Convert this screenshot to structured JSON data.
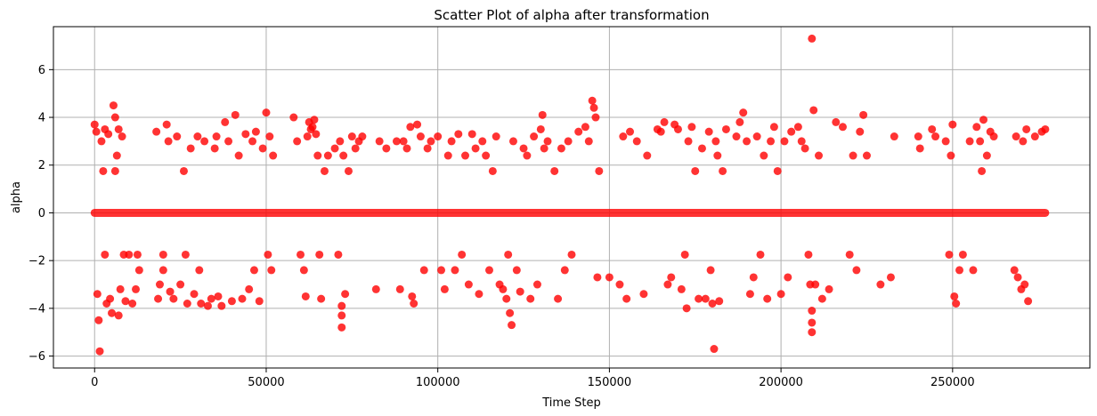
{
  "chart_data": {
    "type": "scatter",
    "title": "Scatter Plot of alpha after transformation",
    "xlabel": "Time Step",
    "ylabel": "alpha",
    "xlim": [
      -12000,
      290000
    ],
    "ylim": [
      -6.5,
      7.8
    ],
    "x_ticks": [
      0,
      50000,
      100000,
      150000,
      200000,
      250000
    ],
    "x_tick_labels": [
      "0",
      "50000",
      "100000",
      "150000",
      "200000",
      "250000"
    ],
    "y_ticks": [
      -6,
      -4,
      -2,
      0,
      2,
      4,
      6
    ],
    "y_tick_labels": [
      "−6",
      "−4",
      "−2",
      "0",
      "2",
      "4",
      "6"
    ],
    "grid": true,
    "legend": "none",
    "marker_color": "#ff0000",
    "marker_alpha": 0.8,
    "zero_band": {
      "x_start": 0,
      "x_end": 277000,
      "y": 0
    },
    "points": [
      {
        "x": 0,
        "y": 3.7
      },
      {
        "x": 500,
        "y": 3.4
      },
      {
        "x": 800,
        "y": -3.4
      },
      {
        "x": 1200,
        "y": -4.5
      },
      {
        "x": 1500,
        "y": -5.8
      },
      {
        "x": 2000,
        "y": 3.0
      },
      {
        "x": 2500,
        "y": 1.75
      },
      {
        "x": 3000,
        "y": -1.75
      },
      {
        "x": 3000,
        "y": 3.5
      },
      {
        "x": 3500,
        "y": -3.8
      },
      {
        "x": 4000,
        "y": 3.3
      },
      {
        "x": 4500,
        "y": -3.6
      },
      {
        "x": 5000,
        "y": -4.2
      },
      {
        "x": 5500,
        "y": 4.5
      },
      {
        "x": 6000,
        "y": 4.0
      },
      {
        "x": 6000,
        "y": 1.75
      },
      {
        "x": 6500,
        "y": 2.4
      },
      {
        "x": 7000,
        "y": -4.3
      },
      {
        "x": 7000,
        "y": 3.5
      },
      {
        "x": 7500,
        "y": -3.2
      },
      {
        "x": 8000,
        "y": 3.2
      },
      {
        "x": 8500,
        "y": -1.75
      },
      {
        "x": 9000,
        "y": -3.7
      },
      {
        "x": 10000,
        "y": -1.75
      },
      {
        "x": 11000,
        "y": -3.8
      },
      {
        "x": 12000,
        "y": -3.2
      },
      {
        "x": 12500,
        "y": -1.75
      },
      {
        "x": 13000,
        "y": -2.4
      },
      {
        "x": 18000,
        "y": 3.4
      },
      {
        "x": 18500,
        "y": -3.6
      },
      {
        "x": 19000,
        "y": -3.0
      },
      {
        "x": 20000,
        "y": -2.4
      },
      {
        "x": 20000,
        "y": -1.75
      },
      {
        "x": 21000,
        "y": 3.7
      },
      {
        "x": 21500,
        "y": 3.0
      },
      {
        "x": 22000,
        "y": -3.3
      },
      {
        "x": 23000,
        "y": -3.6
      },
      {
        "x": 24000,
        "y": 3.2
      },
      {
        "x": 25000,
        "y": -3.0
      },
      {
        "x": 26000,
        "y": 1.75
      },
      {
        "x": 26500,
        "y": -1.75
      },
      {
        "x": 27000,
        "y": -3.8
      },
      {
        "x": 28000,
        "y": 2.7
      },
      {
        "x": 29000,
        "y": -3.4
      },
      {
        "x": 30000,
        "y": 3.2
      },
      {
        "x": 30500,
        "y": -2.4
      },
      {
        "x": 31000,
        "y": -3.8
      },
      {
        "x": 32000,
        "y": 3.0
      },
      {
        "x": 33000,
        "y": -3.9
      },
      {
        "x": 34000,
        "y": -3.6
      },
      {
        "x": 35000,
        "y": 2.7
      },
      {
        "x": 35500,
        "y": 3.2
      },
      {
        "x": 36000,
        "y": -3.5
      },
      {
        "x": 37000,
        "y": -3.9
      },
      {
        "x": 38000,
        "y": 3.8
      },
      {
        "x": 39000,
        "y": 3.0
      },
      {
        "x": 40000,
        "y": -3.7
      },
      {
        "x": 41000,
        "y": 4.1
      },
      {
        "x": 42000,
        "y": 2.4
      },
      {
        "x": 43000,
        "y": -3.6
      },
      {
        "x": 44000,
        "y": 3.3
      },
      {
        "x": 45000,
        "y": -3.2
      },
      {
        "x": 46000,
        "y": 3.0
      },
      {
        "x": 46500,
        "y": -2.4
      },
      {
        "x": 47000,
        "y": 3.4
      },
      {
        "x": 48000,
        "y": -3.7
      },
      {
        "x": 49000,
        "y": 2.7
      },
      {
        "x": 50000,
        "y": 4.2
      },
      {
        "x": 50500,
        "y": -1.75
      },
      {
        "x": 51000,
        "y": 3.2
      },
      {
        "x": 51500,
        "y": -2.4
      },
      {
        "x": 52000,
        "y": 2.4
      },
      {
        "x": 58000,
        "y": 4.0
      },
      {
        "x": 59000,
        "y": 3.0
      },
      {
        "x": 60000,
        "y": -1.75
      },
      {
        "x": 61000,
        "y": -2.4
      },
      {
        "x": 61500,
        "y": -3.5
      },
      {
        "x": 62000,
        "y": 3.2
      },
      {
        "x": 62500,
        "y": 3.8
      },
      {
        "x": 63000,
        "y": 3.5
      },
      {
        "x": 63500,
        "y": 3.6
      },
      {
        "x": 64000,
        "y": 3.9
      },
      {
        "x": 64500,
        "y": 3.3
      },
      {
        "x": 65000,
        "y": 2.4
      },
      {
        "x": 65500,
        "y": -1.75
      },
      {
        "x": 66000,
        "y": -3.6
      },
      {
        "x": 67000,
        "y": 1.75
      },
      {
        "x": 68000,
        "y": 2.4
      },
      {
        "x": 70000,
        "y": 2.7
      },
      {
        "x": 71000,
        "y": -1.75
      },
      {
        "x": 71500,
        "y": 3.0
      },
      {
        "x": 72000,
        "y": -3.9
      },
      {
        "x": 72000,
        "y": -4.3
      },
      {
        "x": 72000,
        "y": -4.8
      },
      {
        "x": 72500,
        "y": 2.4
      },
      {
        "x": 73000,
        "y": -3.4
      },
      {
        "x": 74000,
        "y": 1.75
      },
      {
        "x": 75000,
        "y": 3.2
      },
      {
        "x": 76000,
        "y": 2.7
      },
      {
        "x": 77000,
        "y": 3.0
      },
      {
        "x": 78000,
        "y": 3.2
      },
      {
        "x": 82000,
        "y": -3.2
      },
      {
        "x": 83000,
        "y": 3.0
      },
      {
        "x": 85000,
        "y": 2.7
      },
      {
        "x": 88000,
        "y": 3.0
      },
      {
        "x": 89000,
        "y": -3.2
      },
      {
        "x": 90000,
        "y": 3.0
      },
      {
        "x": 91000,
        "y": 2.7
      },
      {
        "x": 92000,
        "y": 3.6
      },
      {
        "x": 92500,
        "y": -3.5
      },
      {
        "x": 93000,
        "y": -3.8
      },
      {
        "x": 94000,
        "y": 3.7
      },
      {
        "x": 95000,
        "y": 3.2
      },
      {
        "x": 96000,
        "y": -2.4
      },
      {
        "x": 97000,
        "y": 2.7
      },
      {
        "x": 98000,
        "y": 3.0
      },
      {
        "x": 100000,
        "y": 3.2
      },
      {
        "x": 101000,
        "y": -2.4
      },
      {
        "x": 102000,
        "y": -3.2
      },
      {
        "x": 103000,
        "y": 2.4
      },
      {
        "x": 104000,
        "y": 3.0
      },
      {
        "x": 105000,
        "y": -2.4
      },
      {
        "x": 106000,
        "y": 3.3
      },
      {
        "x": 107000,
        "y": -1.75
      },
      {
        "x": 108000,
        "y": 2.4
      },
      {
        "x": 109000,
        "y": -3.0
      },
      {
        "x": 110000,
        "y": 3.3
      },
      {
        "x": 111000,
        "y": 2.7
      },
      {
        "x": 112000,
        "y": -3.4
      },
      {
        "x": 113000,
        "y": 3.0
      },
      {
        "x": 114000,
        "y": 2.4
      },
      {
        "x": 115000,
        "y": -2.4
      },
      {
        "x": 116000,
        "y": 1.75
      },
      {
        "x": 117000,
        "y": 3.2
      },
      {
        "x": 118000,
        "y": -3.0
      },
      {
        "x": 119000,
        "y": -3.2
      },
      {
        "x": 120000,
        "y": -3.6
      },
      {
        "x": 120500,
        "y": -1.75
      },
      {
        "x": 121000,
        "y": -4.2
      },
      {
        "x": 121500,
        "y": -4.7
      },
      {
        "x": 122000,
        "y": 3.0
      },
      {
        "x": 123000,
        "y": -2.4
      },
      {
        "x": 124000,
        "y": -3.3
      },
      {
        "x": 125000,
        "y": 2.7
      },
      {
        "x": 126000,
        "y": 2.4
      },
      {
        "x": 127000,
        "y": -3.6
      },
      {
        "x": 128000,
        "y": 3.2
      },
      {
        "x": 129000,
        "y": -3.0
      },
      {
        "x": 130000,
        "y": 3.5
      },
      {
        "x": 130500,
        "y": 4.1
      },
      {
        "x": 131000,
        "y": 2.7
      },
      {
        "x": 132000,
        "y": 3.0
      },
      {
        "x": 134000,
        "y": 1.75
      },
      {
        "x": 135000,
        "y": -3.6
      },
      {
        "x": 136000,
        "y": 2.7
      },
      {
        "x": 137000,
        "y": -2.4
      },
      {
        "x": 138000,
        "y": 3.0
      },
      {
        "x": 139000,
        "y": -1.75
      },
      {
        "x": 141000,
        "y": 3.4
      },
      {
        "x": 143000,
        "y": 3.6
      },
      {
        "x": 144000,
        "y": 3.0
      },
      {
        "x": 145000,
        "y": 4.7
      },
      {
        "x": 145500,
        "y": 4.4
      },
      {
        "x": 146000,
        "y": 4.0
      },
      {
        "x": 146500,
        "y": -2.7
      },
      {
        "x": 147000,
        "y": 1.75
      },
      {
        "x": 150000,
        "y": -2.7
      },
      {
        "x": 153000,
        "y": -3.0
      },
      {
        "x": 154000,
        "y": 3.2
      },
      {
        "x": 155000,
        "y": -3.6
      },
      {
        "x": 156000,
        "y": 3.4
      },
      {
        "x": 158000,
        "y": 3.0
      },
      {
        "x": 160000,
        "y": -3.4
      },
      {
        "x": 161000,
        "y": 2.4
      },
      {
        "x": 164000,
        "y": 3.5
      },
      {
        "x": 165000,
        "y": 3.4
      },
      {
        "x": 166000,
        "y": 3.8
      },
      {
        "x": 167000,
        "y": -3.0
      },
      {
        "x": 168000,
        "y": -2.7
      },
      {
        "x": 169000,
        "y": 3.7
      },
      {
        "x": 170000,
        "y": 3.5
      },
      {
        "x": 171000,
        "y": -3.2
      },
      {
        "x": 172000,
        "y": -1.75
      },
      {
        "x": 172500,
        "y": -4.0
      },
      {
        "x": 173000,
        "y": 3.0
      },
      {
        "x": 174000,
        "y": 3.6
      },
      {
        "x": 175000,
        "y": 1.75
      },
      {
        "x": 176000,
        "y": -3.6
      },
      {
        "x": 177000,
        "y": 2.7
      },
      {
        "x": 178000,
        "y": -3.6
      },
      {
        "x": 179000,
        "y": 3.4
      },
      {
        "x": 179500,
        "y": -2.4
      },
      {
        "x": 180000,
        "y": -3.8
      },
      {
        "x": 180500,
        "y": -5.7
      },
      {
        "x": 181000,
        "y": 3.0
      },
      {
        "x": 181500,
        "y": 2.4
      },
      {
        "x": 182000,
        "y": -3.7
      },
      {
        "x": 183000,
        "y": 1.75
      },
      {
        "x": 184000,
        "y": 3.5
      },
      {
        "x": 187000,
        "y": 3.2
      },
      {
        "x": 188000,
        "y": 3.8
      },
      {
        "x": 189000,
        "y": 4.2
      },
      {
        "x": 190000,
        "y": 3.0
      },
      {
        "x": 191000,
        "y": -3.4
      },
      {
        "x": 192000,
        "y": -2.7
      },
      {
        "x": 193000,
        "y": 3.2
      },
      {
        "x": 194000,
        "y": -1.75
      },
      {
        "x": 195000,
        "y": 2.4
      },
      {
        "x": 196000,
        "y": -3.6
      },
      {
        "x": 197000,
        "y": 3.0
      },
      {
        "x": 198000,
        "y": 3.6
      },
      {
        "x": 199000,
        "y": 1.75
      },
      {
        "x": 200000,
        "y": -3.4
      },
      {
        "x": 201000,
        "y": 3.0
      },
      {
        "x": 202000,
        "y": -2.7
      },
      {
        "x": 203000,
        "y": 3.4
      },
      {
        "x": 205000,
        "y": 3.6
      },
      {
        "x": 206000,
        "y": 3.0
      },
      {
        "x": 207000,
        "y": 2.7
      },
      {
        "x": 208000,
        "y": -1.75
      },
      {
        "x": 208500,
        "y": -3.0
      },
      {
        "x": 209000,
        "y": 7.3
      },
      {
        "x": 209000,
        "y": -4.1
      },
      {
        "x": 209000,
        "y": -4.6
      },
      {
        "x": 209000,
        "y": -5.0
      },
      {
        "x": 209500,
        "y": 4.3
      },
      {
        "x": 210000,
        "y": -3.0
      },
      {
        "x": 211000,
        "y": 2.4
      },
      {
        "x": 212000,
        "y": -3.6
      },
      {
        "x": 214000,
        "y": -3.2
      },
      {
        "x": 216000,
        "y": 3.8
      },
      {
        "x": 218000,
        "y": 3.6
      },
      {
        "x": 220000,
        "y": -1.75
      },
      {
        "x": 221000,
        "y": 2.4
      },
      {
        "x": 222000,
        "y": -2.4
      },
      {
        "x": 223000,
        "y": 3.4
      },
      {
        "x": 224000,
        "y": 4.1
      },
      {
        "x": 225000,
        "y": 2.4
      },
      {
        "x": 229000,
        "y": -3.0
      },
      {
        "x": 232000,
        "y": -2.7
      },
      {
        "x": 233000,
        "y": 3.2
      },
      {
        "x": 240000,
        "y": 3.2
      },
      {
        "x": 240500,
        "y": 2.7
      },
      {
        "x": 244000,
        "y": 3.5
      },
      {
        "x": 245000,
        "y": 3.2
      },
      {
        "x": 248000,
        "y": 3.0
      },
      {
        "x": 249000,
        "y": -1.75
      },
      {
        "x": 249500,
        "y": 2.4
      },
      {
        "x": 250000,
        "y": 3.7
      },
      {
        "x": 250500,
        "y": -3.5
      },
      {
        "x": 251000,
        "y": -3.8
      },
      {
        "x": 252000,
        "y": -2.4
      },
      {
        "x": 253000,
        "y": -1.75
      },
      {
        "x": 255000,
        "y": 3.0
      },
      {
        "x": 256000,
        "y": -2.4
      },
      {
        "x": 257000,
        "y": 3.6
      },
      {
        "x": 258000,
        "y": 3.0
      },
      {
        "x": 258500,
        "y": 1.75
      },
      {
        "x": 259000,
        "y": 3.9
      },
      {
        "x": 260000,
        "y": 2.4
      },
      {
        "x": 261000,
        "y": 3.4
      },
      {
        "x": 262000,
        "y": 3.2
      },
      {
        "x": 268000,
        "y": -2.4
      },
      {
        "x": 268500,
        "y": 3.2
      },
      {
        "x": 269000,
        "y": -2.7
      },
      {
        "x": 270000,
        "y": -3.2
      },
      {
        "x": 270500,
        "y": 3.0
      },
      {
        "x": 271000,
        "y": -3.0
      },
      {
        "x": 271500,
        "y": 3.5
      },
      {
        "x": 272000,
        "y": -3.7
      },
      {
        "x": 274000,
        "y": 3.2
      },
      {
        "x": 276000,
        "y": 3.4
      },
      {
        "x": 277000,
        "y": 3.5
      }
    ]
  }
}
